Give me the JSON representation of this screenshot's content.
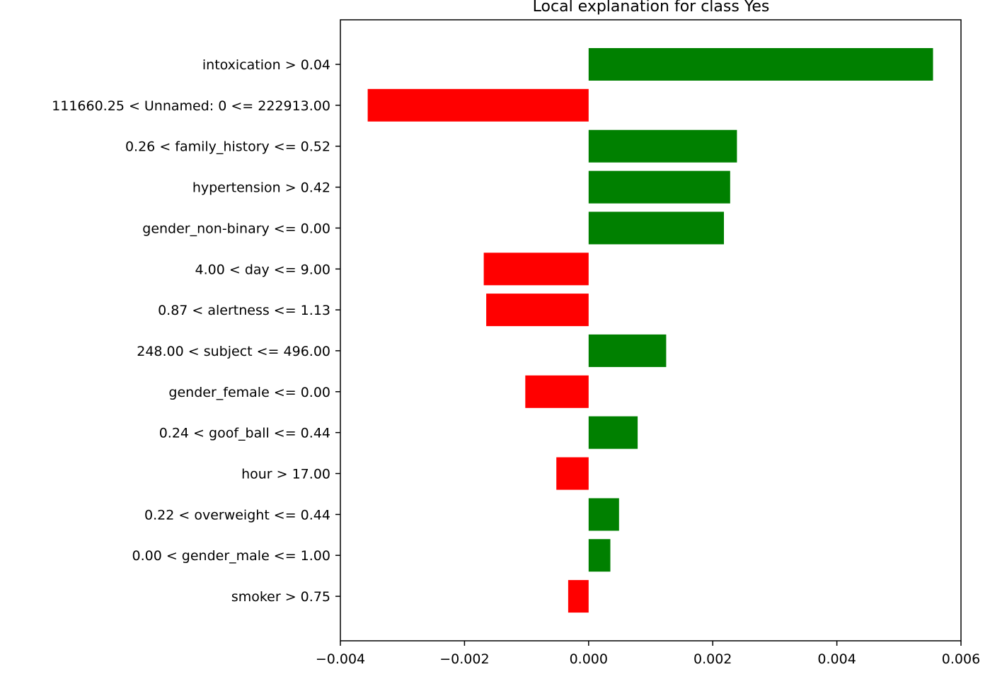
{
  "chart_data": {
    "type": "bar",
    "orientation": "horizontal",
    "title": "Local explanation for class Yes",
    "xlabel": "",
    "ylabel": "",
    "xlim": [
      -0.004,
      0.006
    ],
    "grid": false,
    "legend": "none",
    "x_ticks": [
      -0.004,
      -0.002,
      0.0,
      0.002,
      0.004,
      0.006
    ],
    "x_tick_labels": [
      "−0.004",
      "−0.002",
      "0.000",
      "0.002",
      "0.004",
      "0.006"
    ],
    "categories": [
      "intoxication > 0.04",
      "111660.25 < Unnamed: 0 <= 222913.00",
      "0.26 < family_history <= 0.52",
      "hypertension > 0.42",
      "gender_non-binary <= 0.00",
      "4.00 < day <= 9.00",
      "0.87 < alertness <= 1.13",
      "248.00 < subject <= 496.00",
      "gender_female <= 0.00",
      "0.24 < goof_ball <= 0.44",
      "hour > 17.00",
      "0.22 < overweight <= 0.44",
      "0.00 < gender_male <= 1.00",
      "smoker > 0.75"
    ],
    "values": [
      0.00555,
      -0.00356,
      0.00239,
      0.00228,
      0.00218,
      -0.00169,
      -0.00165,
      0.00125,
      -0.00102,
      0.00079,
      -0.00052,
      0.00049,
      0.00035,
      -0.00033
    ],
    "colors": {
      "positive": "#008000",
      "negative": "#ff0000"
    }
  }
}
